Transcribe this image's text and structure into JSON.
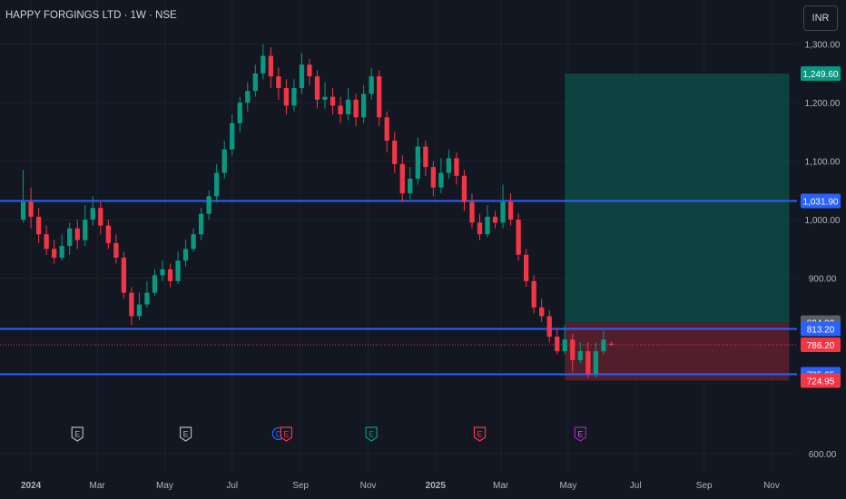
{
  "header": {
    "title": "HAPPY FORGINGS LTD · 1W · NSE",
    "currency_button": "INR"
  },
  "colors": {
    "background": "#131722",
    "grid": "#1e222d",
    "up": "#089981",
    "down": "#f23645",
    "line": "#2962ff",
    "axis_text": "#b2b5be",
    "profit_zone": "#0c4a45",
    "loss_zone": "#5a1f2d"
  },
  "chart_data": {
    "type": "candlestick",
    "title": "HAPPY FORGINGS LTD · 1W · NSE",
    "ylim": [
      600,
      1360
    ],
    "y_ticks": [
      600,
      900,
      1000,
      1100,
      1200,
      1300
    ],
    "y_tick_labels": [
      "600.00",
      "900.00",
      "1,000.00",
      "1,100.00",
      "1,200.00",
      "1,300.00"
    ],
    "x_range": [
      "2023-12-04",
      "2025-11-24"
    ],
    "x_ticks": [
      {
        "label": "2024",
        "date": "2024-01-01",
        "bold": true
      },
      {
        "label": "Mar",
        "date": "2024-03-01"
      },
      {
        "label": "May",
        "date": "2024-05-01"
      },
      {
        "label": "Jul",
        "date": "2024-07-01"
      },
      {
        "label": "Sep",
        "date": "2024-09-01"
      },
      {
        "label": "Nov",
        "date": "2024-11-01"
      },
      {
        "label": "2025",
        "date": "2025-01-01",
        "bold": true
      },
      {
        "label": "Mar",
        "date": "2025-03-01"
      },
      {
        "label": "May",
        "date": "2025-05-01"
      },
      {
        "label": "Jul",
        "date": "2025-07-01"
      },
      {
        "label": "Sep",
        "date": "2025-09-01"
      },
      {
        "label": "Nov",
        "date": "2025-11-01"
      }
    ],
    "first_candle_date": "2023-12-25",
    "candle_interval_days": 7,
    "candles": [
      [
        1000,
        1030,
        1085,
        995
      ],
      [
        1030,
        1005,
        1055,
        985
      ],
      [
        1005,
        975,
        1020,
        960
      ],
      [
        975,
        950,
        990,
        940
      ],
      [
        950,
        935,
        965,
        925
      ],
      [
        935,
        955,
        975,
        930
      ],
      [
        955,
        985,
        995,
        940
      ],
      [
        985,
        965,
        1000,
        950
      ],
      [
        965,
        1000,
        1025,
        955
      ],
      [
        1000,
        1020,
        1040,
        990
      ],
      [
        1020,
        990,
        1030,
        975
      ],
      [
        990,
        960,
        1000,
        950
      ],
      [
        960,
        935,
        975,
        925
      ],
      [
        935,
        875,
        945,
        865
      ],
      [
        875,
        835,
        885,
        820
      ],
      [
        835,
        855,
        875,
        828
      ],
      [
        855,
        875,
        895,
        850
      ],
      [
        875,
        905,
        915,
        870
      ],
      [
        905,
        915,
        930,
        895
      ],
      [
        915,
        895,
        925,
        885
      ],
      [
        895,
        930,
        945,
        890
      ],
      [
        930,
        950,
        965,
        920
      ],
      [
        950,
        975,
        985,
        945
      ],
      [
        975,
        1010,
        1020,
        965
      ],
      [
        1010,
        1040,
        1050,
        1000
      ],
      [
        1040,
        1080,
        1095,
        1030
      ],
      [
        1080,
        1120,
        1135,
        1070
      ],
      [
        1120,
        1165,
        1180,
        1110
      ],
      [
        1165,
        1200,
        1210,
        1150
      ],
      [
        1200,
        1220,
        1235,
        1185
      ],
      [
        1220,
        1250,
        1265,
        1210
      ],
      [
        1250,
        1280,
        1300,
        1240
      ],
      [
        1280,
        1245,
        1295,
        1225
      ],
      [
        1245,
        1225,
        1260,
        1205
      ],
      [
        1225,
        1195,
        1240,
        1180
      ],
      [
        1195,
        1225,
        1240,
        1185
      ],
      [
        1225,
        1265,
        1285,
        1215
      ],
      [
        1265,
        1245,
        1275,
        1230
      ],
      [
        1245,
        1205,
        1255,
        1190
      ],
      [
        1205,
        1210,
        1235,
        1190
      ],
      [
        1210,
        1195,
        1225,
        1180
      ],
      [
        1195,
        1180,
        1210,
        1165
      ],
      [
        1180,
        1205,
        1225,
        1170
      ],
      [
        1205,
        1175,
        1215,
        1160
      ],
      [
        1175,
        1215,
        1230,
        1165
      ],
      [
        1215,
        1245,
        1260,
        1205
      ],
      [
        1245,
        1175,
        1255,
        1160
      ],
      [
        1175,
        1135,
        1185,
        1115
      ],
      [
        1135,
        1095,
        1150,
        1080
      ],
      [
        1095,
        1045,
        1110,
        1030
      ],
      [
        1045,
        1070,
        1090,
        1035
      ],
      [
        1070,
        1125,
        1140,
        1060
      ],
      [
        1125,
        1090,
        1135,
        1075
      ],
      [
        1090,
        1055,
        1100,
        1040
      ],
      [
        1055,
        1080,
        1105,
        1045
      ],
      [
        1080,
        1105,
        1120,
        1070
      ],
      [
        1105,
        1075,
        1115,
        1060
      ],
      [
        1075,
        1030,
        1085,
        1015
      ],
      [
        1030,
        995,
        1045,
        985
      ],
      [
        995,
        975,
        1010,
        965
      ],
      [
        975,
        1005,
        1025,
        970
      ],
      [
        1005,
        995,
        1015,
        985
      ],
      [
        995,
        1030,
        1060,
        985
      ],
      [
        1030,
        1000,
        1045,
        990
      ],
      [
        1000,
        940,
        1010,
        930
      ],
      [
        940,
        895,
        950,
        885
      ],
      [
        895,
        850,
        905,
        840
      ],
      [
        850,
        835,
        865,
        825
      ],
      [
        835,
        800,
        845,
        790
      ],
      [
        800,
        775,
        815,
        770
      ],
      [
        775,
        795,
        820,
        770
      ],
      [
        795,
        760,
        805,
        740
      ],
      [
        760,
        775,
        790,
        755
      ],
      [
        775,
        736,
        790,
        730
      ],
      [
        736,
        775,
        790,
        730
      ],
      [
        775,
        795,
        810,
        770
      ],
      [
        788,
        786,
        792,
        784
      ]
    ],
    "horizontal_lines": [
      1031.9,
      813.2,
      735.65
    ],
    "last_price": 786.2,
    "position": {
      "start_date": "2025-04-28",
      "end_date": "2025-11-17",
      "entry": 786.2,
      "target": 1249.6,
      "stop": 724.95,
      "zone_upper": 824.0
    },
    "price_labels": [
      {
        "value": 1249.6,
        "text": "1,249.60",
        "kind": "target"
      },
      {
        "value": 1031.9,
        "text": "1,031.90",
        "kind": "line"
      },
      {
        "value": 824.0,
        "text": "824.00",
        "kind": "neutral"
      },
      {
        "value": 813.2,
        "text": "813.20",
        "kind": "line"
      },
      {
        "value": 786.2,
        "text": "786.20",
        "kind": "stop"
      },
      {
        "value": 735.65,
        "text": "735.65",
        "kind": "line"
      },
      {
        "value": 724.95,
        "text": "724.95",
        "kind": "stop"
      }
    ],
    "events": [
      {
        "letter": "E",
        "date": "2024-02-12",
        "kind": "earnings-past"
      },
      {
        "letter": "E",
        "date": "2024-05-20",
        "kind": "earnings-past"
      },
      {
        "letter": "D",
        "date": "2024-08-12",
        "kind": "dividend"
      },
      {
        "letter": "E",
        "date": "2024-08-19",
        "kind": "earnings-down"
      },
      {
        "letter": "E",
        "date": "2024-11-04",
        "kind": "earnings-up"
      },
      {
        "letter": "E",
        "date": "2025-02-10",
        "kind": "earnings-down"
      },
      {
        "letter": "E",
        "date": "2025-05-12",
        "kind": "earnings-future"
      }
    ]
  }
}
